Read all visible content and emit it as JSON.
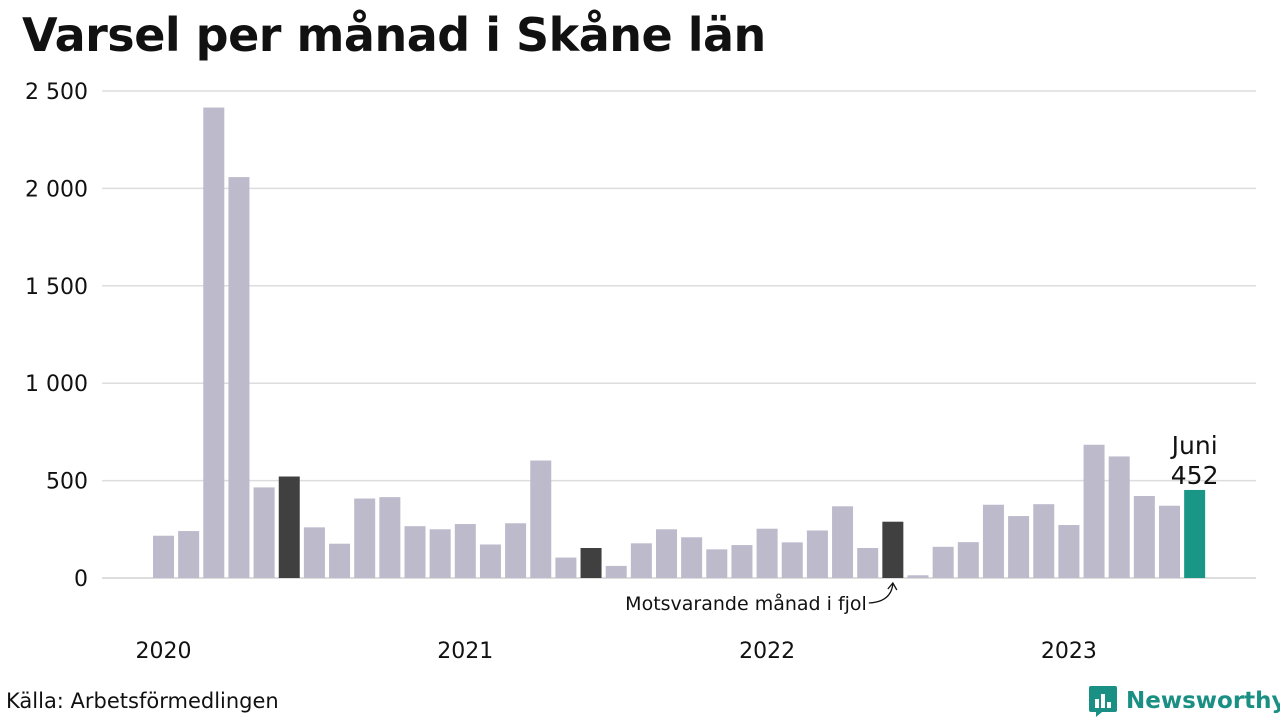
{
  "colors": {
    "bar": "#bcbacb",
    "bar_prev_year": "#404040",
    "bar_latest": "#1a9687",
    "grid": "#dddddd",
    "brand": "#1a8f83"
  },
  "source": "Källa: Arbetsförmedlingen",
  "brand": {
    "name": "Newsworthy",
    "icon": "bar-chart-speech-bubble-icon"
  },
  "chart_data": {
    "type": "bar",
    "title": "Varsel per månad i Skåne län",
    "xlabel": "",
    "ylabel": "",
    "ylim": [
      0,
      2500
    ],
    "yticks": [
      0,
      500,
      1000,
      1500,
      2000,
      2500
    ],
    "ytick_labels": [
      "0",
      "500",
      "1 000",
      "1 500",
      "2 000",
      "2 500"
    ],
    "xtick_labels": [
      "2020",
      "2021",
      "2022",
      "2023"
    ],
    "grid": true,
    "categories": [
      "2020-01",
      "2020-02",
      "2020-03",
      "2020-04",
      "2020-05",
      "2020-06",
      "2020-07",
      "2020-08",
      "2020-09",
      "2020-10",
      "2020-11",
      "2020-12",
      "2021-01",
      "2021-02",
      "2021-03",
      "2021-04",
      "2021-05",
      "2021-06",
      "2021-07",
      "2021-08",
      "2021-09",
      "2021-10",
      "2021-11",
      "2021-12",
      "2022-01",
      "2022-02",
      "2022-03",
      "2022-04",
      "2022-05",
      "2022-06",
      "2022-07",
      "2022-08",
      "2022-09",
      "2022-10",
      "2022-11",
      "2022-12",
      "2023-01",
      "2023-02",
      "2023-03",
      "2023-04",
      "2023-05",
      "2023-06"
    ],
    "values": [
      217,
      241,
      2415,
      2058,
      465,
      521,
      260,
      176,
      408,
      415,
      266,
      250,
      277,
      172,
      281,
      603,
      105,
      154,
      62,
      178,
      250,
      209,
      147,
      169,
      253,
      183,
      244,
      368,
      154,
      289,
      14,
      160,
      184,
      376,
      318,
      379,
      272,
      684,
      624,
      421,
      371,
      452
    ],
    "highlight_prev_year": [
      "2020-06",
      "2021-06",
      "2022-06"
    ],
    "highlight_latest": "2023-06",
    "annotations": {
      "latest_month": "Juni",
      "latest_value": "452",
      "prev_year_note": "Motsvarande månad i fjol"
    }
  }
}
